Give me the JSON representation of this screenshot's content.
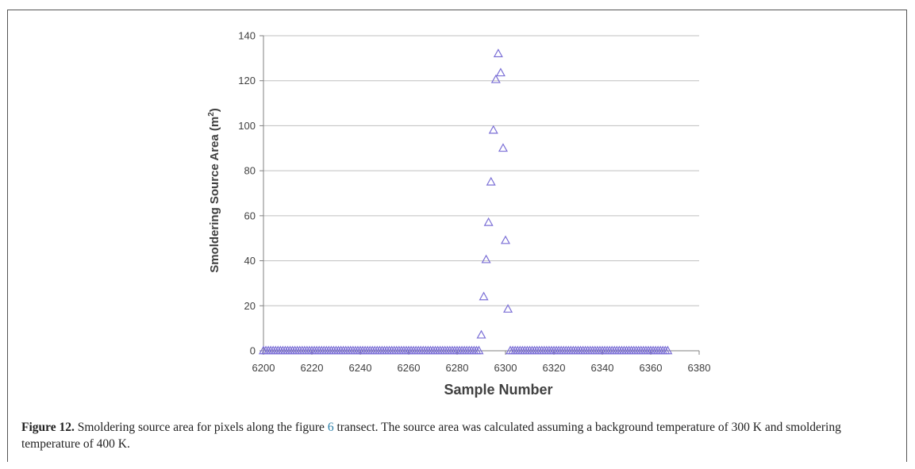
{
  "chart_data": {
    "type": "scatter",
    "xlabel": "Sample Number",
    "ylabel_main": "Smoldering Source Area (m",
    "ylabel_sup": "2",
    "ylabel_tail": ")",
    "xlim": [
      6200,
      6380
    ],
    "ylim": [
      0,
      140
    ],
    "xticks": [
      6200,
      6220,
      6240,
      6260,
      6280,
      6300,
      6320,
      6340,
      6360,
      6380
    ],
    "yticks": [
      0,
      20,
      40,
      60,
      80,
      100,
      120,
      140
    ],
    "grid": "horizontal",
    "marker": "open-triangle",
    "color": "#7b6fd6",
    "zero_runs": [
      [
        6200,
        6289
      ],
      [
        6302,
        6367
      ]
    ],
    "points": [
      {
        "x": 6290,
        "y": 7
      },
      {
        "x": 6291,
        "y": 24
      },
      {
        "x": 6292,
        "y": 40.5
      },
      {
        "x": 6293,
        "y": 57
      },
      {
        "x": 6294,
        "y": 75
      },
      {
        "x": 6295,
        "y": 98
      },
      {
        "x": 6296,
        "y": 120.5
      },
      {
        "x": 6297,
        "y": 132
      },
      {
        "x": 6298,
        "y": 123.5
      },
      {
        "x": 6299,
        "y": 90
      },
      {
        "x": 6300,
        "y": 49
      },
      {
        "x": 6301,
        "y": 18.5
      }
    ]
  },
  "caption": {
    "lead": "Figure 12.",
    "text_before_ref": " Smoldering source area for pixels along the figure ",
    "ref": "6",
    "text_after_ref": " transect. The source area was calculated assuming a background temperature of 300 K and smoldering temperature of 400 K."
  }
}
